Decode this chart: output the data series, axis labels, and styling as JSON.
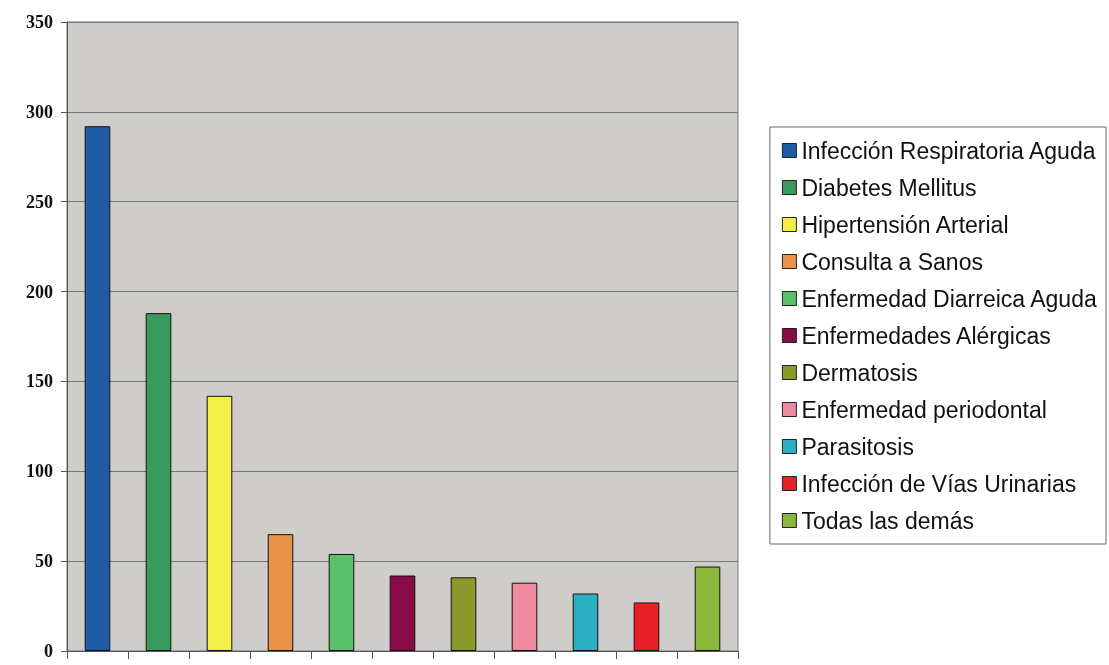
{
  "chart_data": {
    "type": "bar",
    "categories": [
      null,
      null,
      null,
      null,
      null,
      null,
      null,
      null,
      null,
      null,
      null
    ],
    "series": [
      {
        "name": "Infección Respiratoria Aguda",
        "color": "#1f5ca8",
        "values": [
          292,
          null,
          null,
          null,
          null,
          null,
          null,
          null,
          null,
          null,
          null
        ]
      },
      {
        "name": "Diabetes Mellitus",
        "color": "#3a9a5e",
        "values": [
          null,
          188,
          null,
          null,
          null,
          null,
          null,
          null,
          null,
          null,
          null
        ]
      },
      {
        "name": "Hipertensión Arterial",
        "color": "#f2ee4a",
        "values": [
          null,
          null,
          142,
          null,
          null,
          null,
          null,
          null,
          null,
          null,
          null
        ]
      },
      {
        "name": "Consulta a Sanos",
        "color": "#e8924a",
        "values": [
          null,
          null,
          null,
          65,
          null,
          null,
          null,
          null,
          null,
          null,
          null
        ]
      },
      {
        "name": "Enfermedad Diarreica Aguda",
        "color": "#5cbf6a",
        "values": [
          null,
          null,
          null,
          null,
          54,
          null,
          null,
          null,
          null,
          null,
          null
        ]
      },
      {
        "name": "Enfermedades Alérgicas",
        "color": "#8a0b4a",
        "values": [
          null,
          null,
          null,
          null,
          null,
          42,
          null,
          null,
          null,
          null,
          null
        ]
      },
      {
        "name": "Dermatosis",
        "color": "#8a9a2a",
        "values": [
          null,
          null,
          null,
          null,
          null,
          null,
          41,
          null,
          null,
          null,
          null
        ]
      },
      {
        "name": "Enfermedad periodontal",
        "color": "#f08aa0",
        "values": [
          null,
          null,
          null,
          null,
          null,
          null,
          null,
          38,
          null,
          null,
          null
        ]
      },
      {
        "name": "Parasitosis",
        "color": "#2ab0c0",
        "values": [
          null,
          null,
          null,
          null,
          null,
          null,
          null,
          null,
          32,
          null,
          null
        ]
      },
      {
        "name": "Infección de Vías Urinarias",
        "color": "#e8202a",
        "values": [
          null,
          null,
          null,
          null,
          null,
          null,
          null,
          null,
          null,
          27,
          null
        ]
      },
      {
        "name": "Todas las demás",
        "color": "#8ab83a",
        "values": [
          null,
          null,
          null,
          null,
          null,
          null,
          null,
          null,
          null,
          null,
          47
        ]
      }
    ],
    "ylim": [
      0,
      350
    ],
    "yticks": [
      0,
      50,
      100,
      150,
      200,
      250,
      300,
      350
    ],
    "grid": "y",
    "legend": "right",
    "tick_labels": "y"
  }
}
